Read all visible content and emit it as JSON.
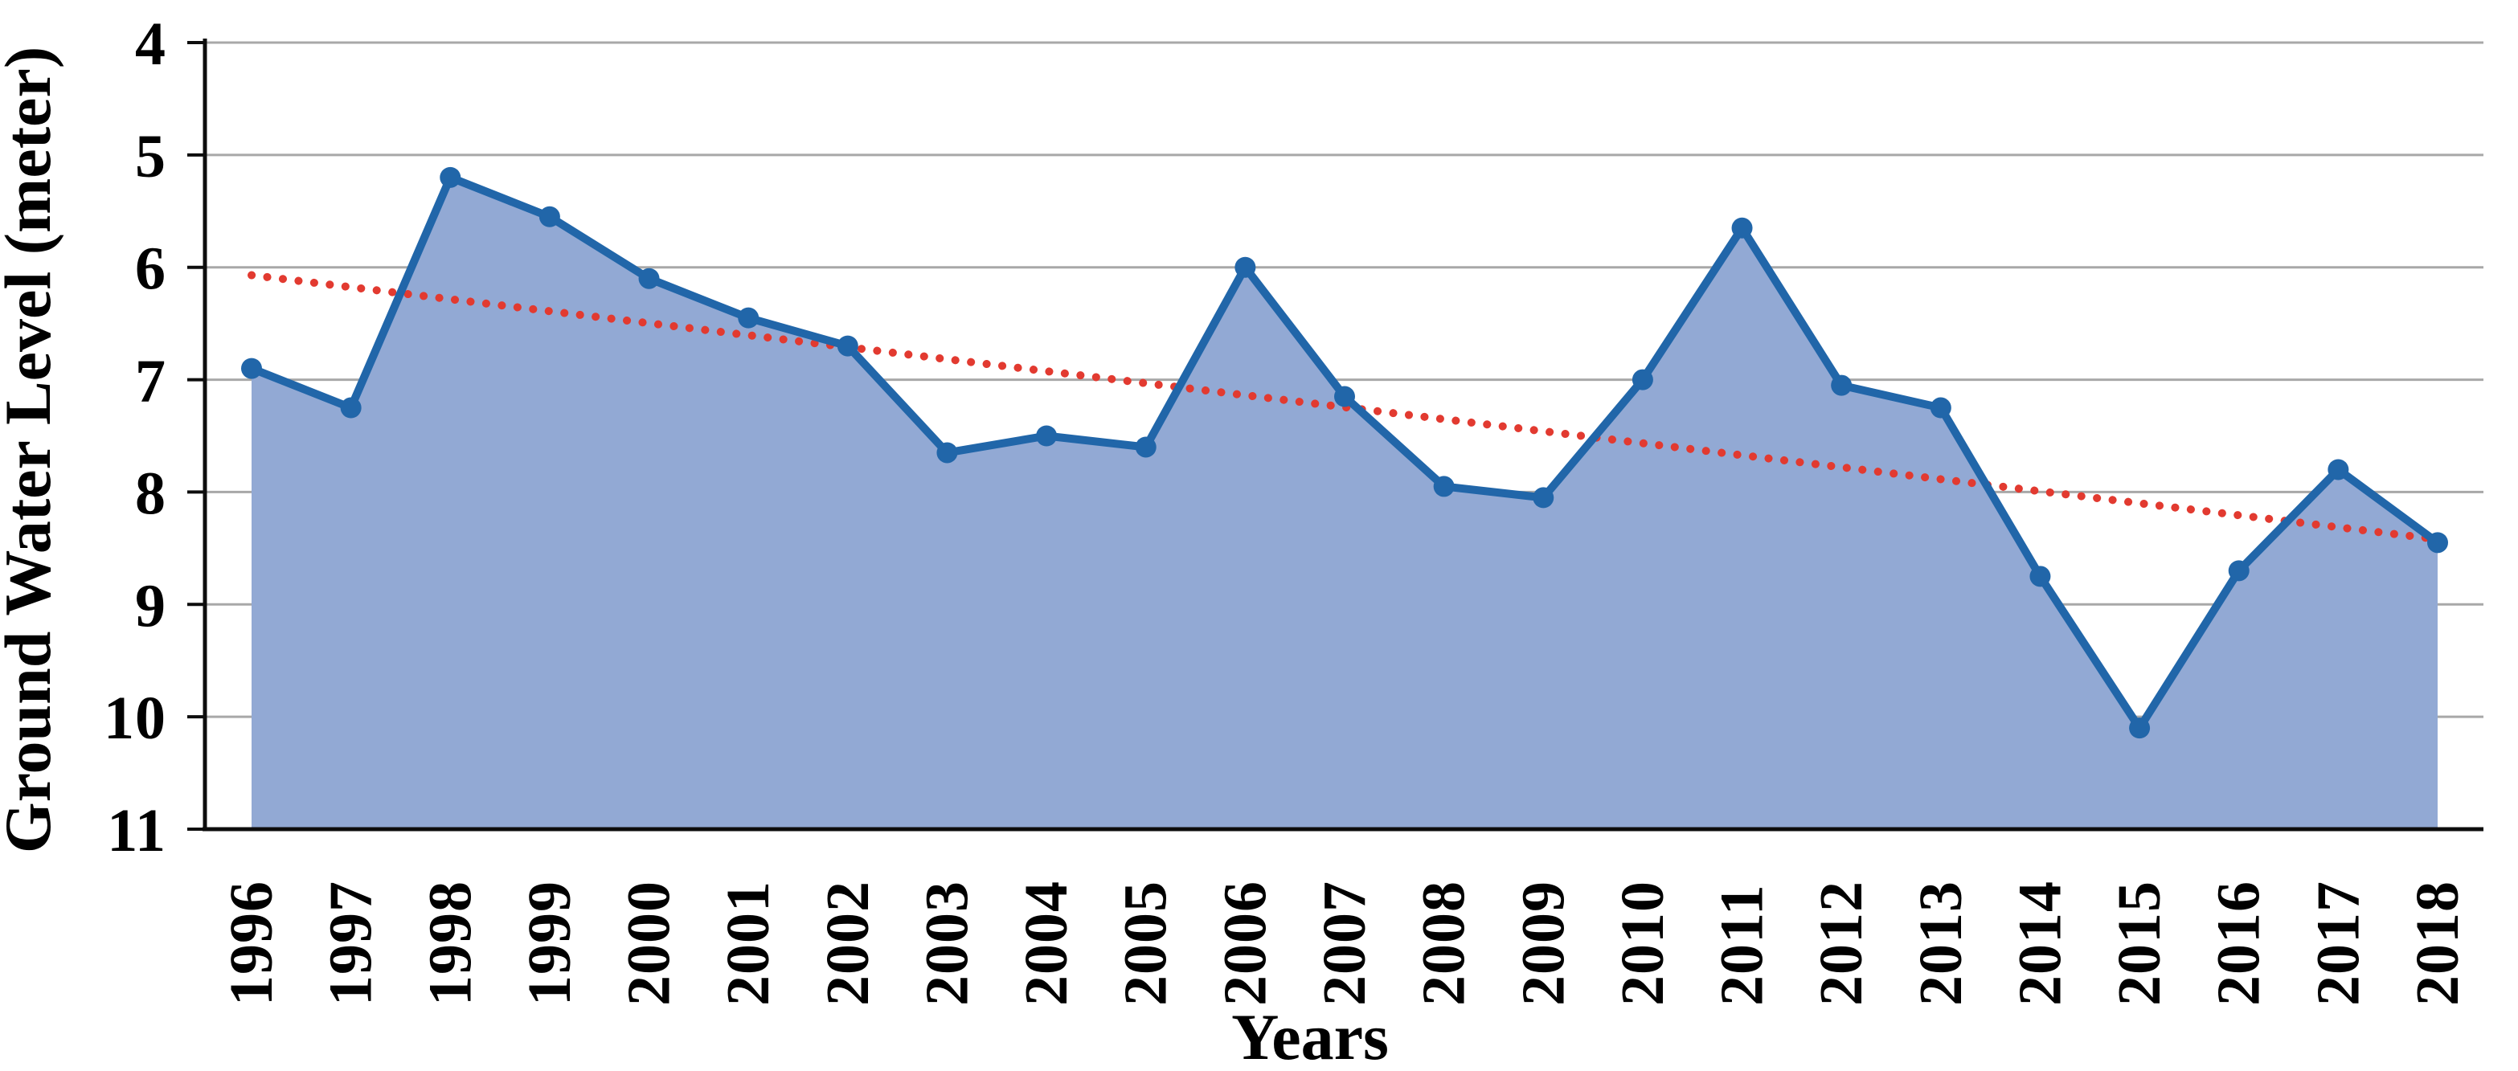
{
  "chart_data": {
    "type": "area",
    "title": "",
    "xlabel": "Years",
    "ylabel": "Ground Water Level (meter)",
    "categories": [
      "1996",
      "1997",
      "1998",
      "1999",
      "2000",
      "2001",
      "2002",
      "2003",
      "2004",
      "2005",
      "2006",
      "2007",
      "2008",
      "2009",
      "2010",
      "2011",
      "2012",
      "2013",
      "2014",
      "2015",
      "2016",
      "2017",
      "2018"
    ],
    "series": [
      {
        "name": "Ground Water Level",
        "values": [
          6.9,
          7.25,
          5.2,
          5.55,
          6.1,
          6.45,
          6.7,
          7.65,
          7.5,
          7.6,
          6.0,
          7.15,
          7.95,
          8.05,
          7.0,
          5.65,
          7.05,
          7.25,
          8.75,
          10.1,
          8.7,
          7.8,
          8.45
        ]
      }
    ],
    "trendline": {
      "name": "linear-trend",
      "start_value": 6.07,
      "end_value": 8.42,
      "style": "dotted"
    },
    "y_axis": {
      "min": 4,
      "max": 11,
      "step": 1,
      "inverted": true,
      "ticks": [
        "4",
        "5",
        "6",
        "7",
        "8",
        "9",
        "10",
        "11"
      ]
    },
    "grid": true,
    "legend_position": "none",
    "colors": {
      "line": "#2166A9",
      "marker": "#2166A9",
      "area_fill": "#92A9D4",
      "trend": "#E23A30",
      "gridline": "#A8A8A8",
      "axis": "#0D0D0D",
      "text": "#000000",
      "background": "#FFFFFF"
    }
  }
}
